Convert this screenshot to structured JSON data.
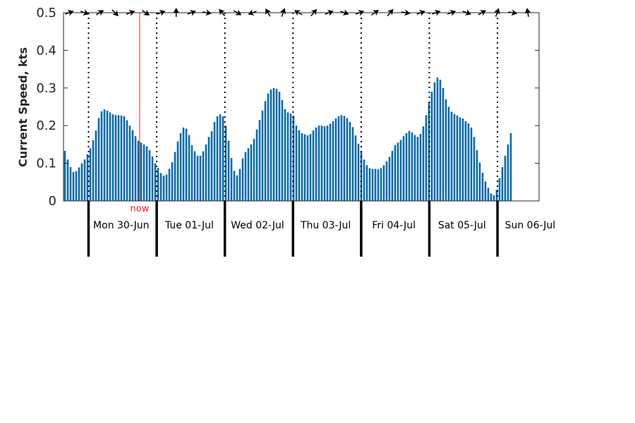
{
  "chart_data": {
    "type": "bar",
    "ylabel": "Current Speed, kts",
    "ylim": [
      0,
      0.5
    ],
    "y_ticks": [
      "0",
      "0.1",
      "0.2",
      "0.3",
      "0.4",
      "0.5"
    ],
    "grid": false,
    "days": [
      "Mon 30-Jun",
      "Tue 01-Jul",
      "Wed 02-Jul",
      "Thu 03-Jul",
      "Fri 04-Jul",
      "Sat 05-Jul",
      "Sun 06-Jul"
    ],
    "now_label": "now",
    "now_hour": 27,
    "hours_per_bar": 1,
    "first_bar_hour": 0,
    "day_start_hour": 9,
    "hours_per_day": 24,
    "values": [
      0.133,
      0.11,
      0.09,
      0.077,
      0.079,
      0.089,
      0.1,
      0.11,
      0.124,
      0.14,
      0.161,
      0.187,
      0.22,
      0.238,
      0.243,
      0.24,
      0.235,
      0.23,
      0.228,
      0.228,
      0.227,
      0.225,
      0.214,
      0.2,
      0.188,
      0.172,
      0.16,
      0.155,
      0.15,
      0.145,
      0.135,
      0.118,
      0.1,
      0.088,
      0.074,
      0.067,
      0.07,
      0.085,
      0.103,
      0.13,
      0.158,
      0.18,
      0.195,
      0.192,
      0.175,
      0.148,
      0.132,
      0.12,
      0.12,
      0.132,
      0.15,
      0.17,
      0.185,
      0.21,
      0.225,
      0.23,
      0.225,
      0.2,
      0.16,
      0.114,
      0.08,
      0.068,
      0.085,
      0.113,
      0.13,
      0.14,
      0.15,
      0.165,
      0.19,
      0.215,
      0.24,
      0.265,
      0.285,
      0.296,
      0.3,
      0.298,
      0.29,
      0.268,
      0.244,
      0.235,
      0.232,
      0.226,
      0.2,
      0.188,
      0.18,
      0.177,
      0.174,
      0.178,
      0.187,
      0.195,
      0.2,
      0.2,
      0.198,
      0.2,
      0.205,
      0.212,
      0.219,
      0.225,
      0.228,
      0.226,
      0.22,
      0.21,
      0.196,
      0.174,
      0.152,
      0.131,
      0.11,
      0.095,
      0.087,
      0.085,
      0.085,
      0.084,
      0.087,
      0.095,
      0.105,
      0.117,
      0.133,
      0.148,
      0.155,
      0.162,
      0.172,
      0.18,
      0.186,
      0.182,
      0.175,
      0.17,
      0.178,
      0.198,
      0.228,
      0.262,
      0.29,
      0.315,
      0.328,
      0.322,
      0.3,
      0.27,
      0.25,
      0.237,
      0.231,
      0.227,
      0.222,
      0.219,
      0.212,
      0.206,
      0.195,
      0.17,
      0.135,
      0.102,
      0.075,
      0.052,
      0.035,
      0.02,
      0.015,
      0.03,
      0.06,
      0.09,
      0.12,
      0.15,
      0.18
    ],
    "direction_angles_deg": [
      20,
      -20,
      30,
      -45,
      20,
      -35,
      20,
      90,
      20,
      -10,
      130,
      -30,
      200,
      120,
      70,
      150,
      50,
      20,
      -20,
      20,
      35,
      50,
      -10,
      20,
      20,
      20,
      -20,
      30,
      70,
      -10,
      100
    ],
    "bar_color": "#0b6aa9",
    "now_color": "#e3262b"
  }
}
